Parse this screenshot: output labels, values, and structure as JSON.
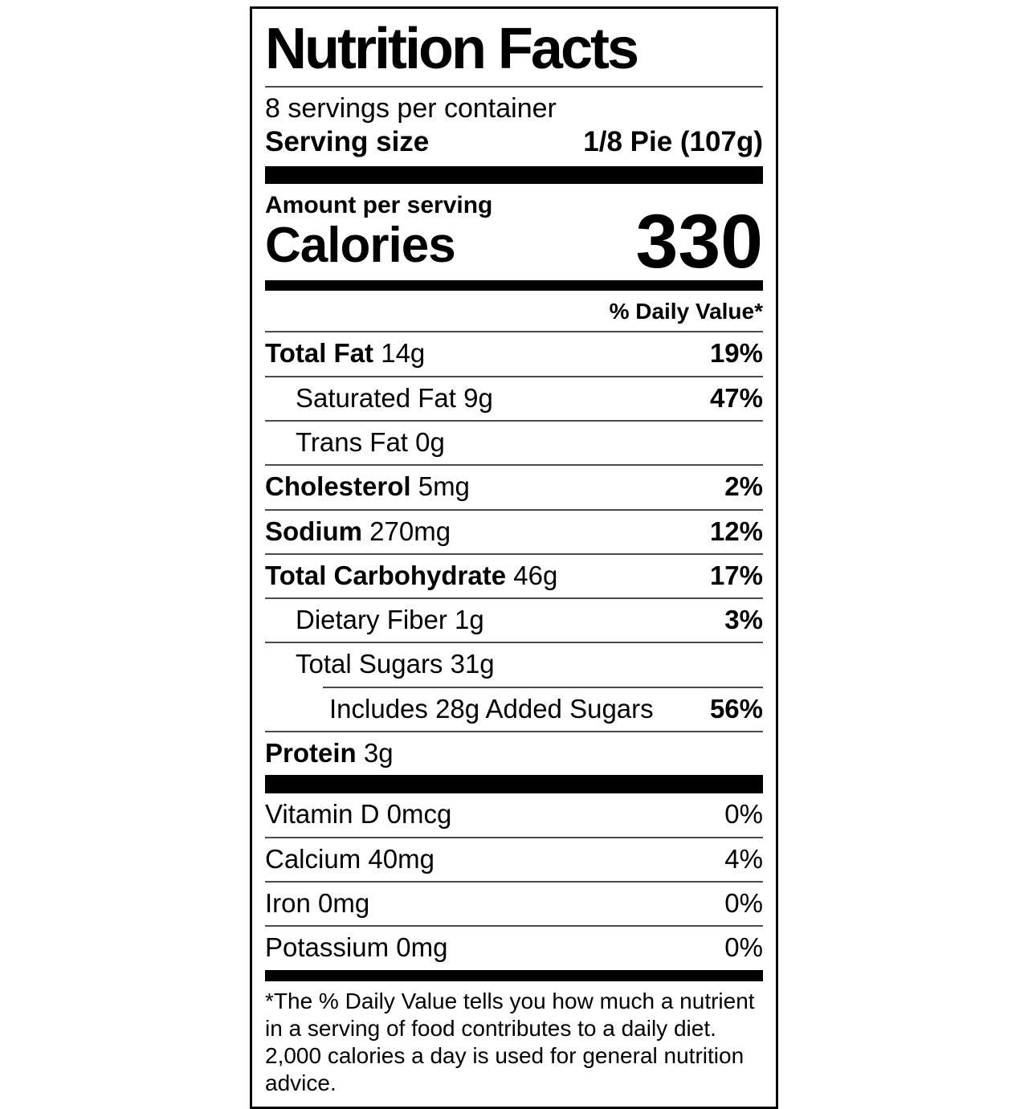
{
  "label": {
    "title": "Nutrition Facts",
    "servings_per_container": "8 servings per container",
    "serving_size_label": "Serving size",
    "serving_size_value": "1/8 Pie (107g)",
    "amount_per_serving": "Amount per serving",
    "calories_label": "Calories",
    "calories_value": "330",
    "daily_value_header": "% Daily Value*",
    "nutrients": [
      {
        "name": "Total Fat",
        "amount": "14g",
        "dv": "19%",
        "bold_name": true,
        "indent": 0,
        "divider_indent": false
      },
      {
        "name": "Saturated Fat",
        "amount": "9g",
        "dv": "47%",
        "bold_name": false,
        "indent": 1,
        "divider_indent": false
      },
      {
        "name": "Trans Fat",
        "amount": "0g",
        "dv": "",
        "bold_name": false,
        "indent": 1,
        "divider_indent": false
      },
      {
        "name": "Cholesterol",
        "amount": "5mg",
        "dv": "2%",
        "bold_name": true,
        "indent": 0,
        "divider_indent": false
      },
      {
        "name": "Sodium",
        "amount": "270mg",
        "dv": "12%",
        "bold_name": true,
        "indent": 0,
        "divider_indent": false
      },
      {
        "name": "Total Carbohydrate",
        "amount": "46g",
        "dv": "17%",
        "bold_name": true,
        "indent": 0,
        "divider_indent": false
      },
      {
        "name": "Dietary Fiber",
        "amount": "1g",
        "dv": "3%",
        "bold_name": false,
        "indent": 1,
        "divider_indent": false
      },
      {
        "name": "Total Sugars",
        "amount": "31g",
        "dv": "",
        "bold_name": false,
        "indent": 1,
        "divider_indent": false
      },
      {
        "name": "Includes 28g Added Sugars",
        "amount": "",
        "dv": "56%",
        "bold_name": false,
        "indent": 2,
        "divider_indent": true
      },
      {
        "name": "Protein",
        "amount": "3g",
        "dv": "",
        "bold_name": true,
        "indent": 0,
        "divider_indent": false
      }
    ],
    "vitamins": [
      {
        "name": "Vitamin D",
        "amount": "0mcg",
        "dv": "0%"
      },
      {
        "name": "Calcium",
        "amount": "40mg",
        "dv": "4%"
      },
      {
        "name": "Iron",
        "amount": "0mg",
        "dv": "0%"
      },
      {
        "name": "Potassium",
        "amount": "0mg",
        "dv": "0%"
      }
    ],
    "footnote": "*The % Daily Value tells you how much a nutrient in a serving of food contributes to a daily diet. 2,000 calories a day is used for general nutrition advice.",
    "colors": {
      "text": "#000000",
      "background": "#ffffff",
      "hairline": "#4a4a4a"
    }
  }
}
